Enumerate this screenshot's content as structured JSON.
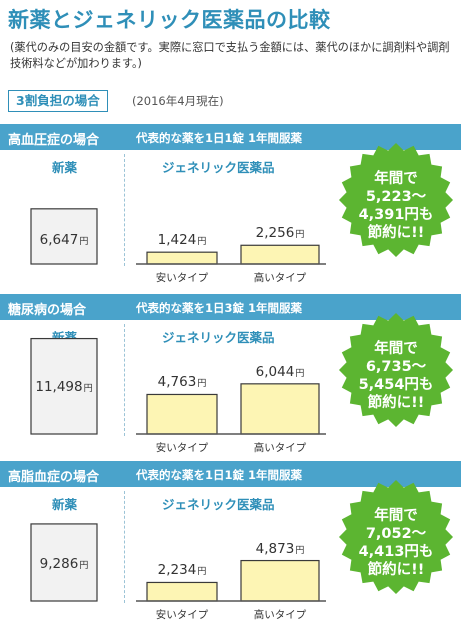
{
  "header": {
    "title": "新薬とジェネリック医薬品の比較",
    "note": "(薬代のみの目安の金額です。実際に窓口で支払う金額には、薬代のほかに調剤料や調剤技術料などが加わります。)"
  },
  "badge": {
    "label": "3割負担の場合",
    "date": "(2016年4月現在)"
  },
  "colors": {
    "accent": "#2f8fb8",
    "section_bar": "#4aa3cb",
    "seal": "#5cb531",
    "generic_bar": "#fdf5b4"
  },
  "labels": {
    "new_drug": "新薬",
    "generic": "ジェネリック医薬品",
    "cheap": "安いタイプ",
    "expensive": "高いタイプ",
    "yen": "円"
  },
  "chart_data": [
    {
      "type": "bar",
      "name": "高血圧症の場合",
      "description": "代表的な薬を1日1錠 1年間服薬",
      "categories": [
        "新薬",
        "安いタイプ",
        "高いタイプ"
      ],
      "values": [
        6647,
        1424,
        2256
      ],
      "value_labels": [
        "6,647",
        "1,424",
        "2,256"
      ],
      "savings": [
        "年間で",
        "5,223〜",
        "4,391円も",
        "節約に!!"
      ]
    },
    {
      "type": "bar",
      "name": "糖尿病の場合",
      "description": "代表的な薬を1日3錠 1年間服薬",
      "categories": [
        "新薬",
        "安いタイプ",
        "高いタイプ"
      ],
      "values": [
        11498,
        4763,
        6044
      ],
      "value_labels": [
        "11,498",
        "4,763",
        "6,044"
      ],
      "savings": [
        "年間で",
        "6,735〜",
        "5,454円も",
        "節約に!!"
      ]
    },
    {
      "type": "bar",
      "name": "高脂血症の場合",
      "description": "代表的な薬を1日1錠 1年間服薬",
      "categories": [
        "新薬",
        "安いタイプ",
        "高いタイプ"
      ],
      "values": [
        9286,
        2234,
        4873
      ],
      "value_labels": [
        "9,286",
        "2,234",
        "4,873"
      ],
      "savings": [
        "年間で",
        "7,052〜",
        "4,413円も",
        "節約に!!"
      ]
    }
  ]
}
